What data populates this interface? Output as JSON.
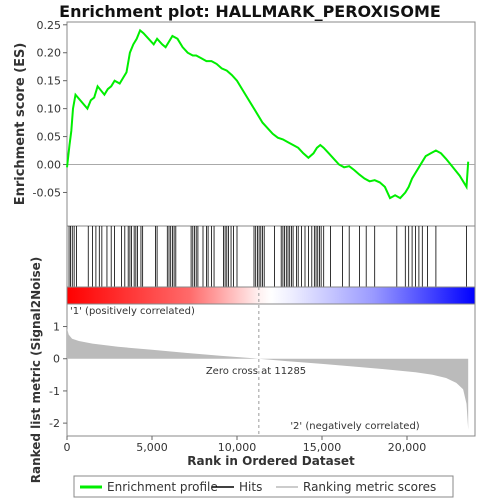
{
  "chart_data": {
    "type": "line",
    "title": "Enrichment plot: HALLMARK_PEROXISOME",
    "top_panel": {
      "ylabel": "Enrichment score (ES)",
      "ylim": [
        -0.11,
        0.255
      ],
      "yticks": [
        -0.05,
        0.0,
        0.05,
        0.1,
        0.15,
        0.2,
        0.25
      ],
      "ytick_labels": [
        "-0.05",
        "0.00",
        "0.05",
        "0.10",
        "0.15",
        "0.20",
        "0.25"
      ],
      "series": [
        {
          "name": "Enrichment profile",
          "color": "#00ee00",
          "x": [
            0,
            150,
            250,
            350,
            500,
            1200,
            1400,
            1600,
            1800,
            2200,
            2400,
            2600,
            2800,
            3100,
            3300,
            3500,
            3700,
            3900,
            4100,
            4300,
            4500,
            4800,
            5100,
            5300,
            5600,
            5800,
            6000,
            6200,
            6500,
            6800,
            7100,
            7400,
            7600,
            7900,
            8200,
            8500,
            8800,
            9100,
            9400,
            9700,
            10000,
            10300,
            10600,
            10900,
            11200,
            11500,
            11800,
            12100,
            12400,
            12700,
            13000,
            13300,
            13600,
            13900,
            14200,
            14500,
            14700,
            14900,
            15100,
            15400,
            15700,
            16000,
            16300,
            16600,
            16900,
            17200,
            17500,
            17800,
            18100,
            18400,
            18700,
            19000,
            19300,
            19600,
            19900,
            20100,
            20300,
            20500,
            20700,
            20900,
            21100,
            21400,
            21700,
            22000,
            22300,
            22700,
            23100,
            23500,
            23600
          ],
          "y": [
            -0.005,
            0.035,
            0.06,
            0.1,
            0.125,
            0.1,
            0.115,
            0.12,
            0.14,
            0.125,
            0.135,
            0.14,
            0.15,
            0.145,
            0.155,
            0.165,
            0.2,
            0.215,
            0.225,
            0.24,
            0.235,
            0.225,
            0.215,
            0.225,
            0.215,
            0.21,
            0.22,
            0.23,
            0.225,
            0.21,
            0.2,
            0.195,
            0.195,
            0.19,
            0.185,
            0.185,
            0.18,
            0.172,
            0.168,
            0.16,
            0.15,
            0.135,
            0.12,
            0.105,
            0.09,
            0.075,
            0.065,
            0.055,
            0.048,
            0.045,
            0.04,
            0.035,
            0.03,
            0.02,
            0.012,
            0.02,
            0.03,
            0.035,
            0.03,
            0.02,
            0.01,
            0.0,
            -0.005,
            -0.003,
            -0.01,
            -0.018,
            -0.025,
            -0.03,
            -0.028,
            -0.032,
            -0.04,
            -0.06,
            -0.055,
            -0.06,
            -0.05,
            -0.04,
            -0.025,
            -0.015,
            -0.005,
            0.005,
            0.015,
            0.02,
            0.025,
            0.02,
            0.01,
            -0.005,
            -0.02,
            -0.04,
            0.005
          ]
        }
      ]
    },
    "hits_panel": {
      "hit_positions": [
        120,
        200,
        310,
        420,
        560,
        1250,
        1500,
        1700,
        1900,
        2050,
        2350,
        2600,
        2800,
        3200,
        3400,
        3600,
        3700,
        3800,
        3950,
        4050,
        4150,
        4350,
        4450,
        5200,
        5300,
        5900,
        6000,
        6100,
        6200,
        6300,
        6400,
        7300,
        7400,
        7500,
        7600,
        7700,
        8000,
        8200,
        8300,
        8500,
        8650,
        9200,
        9300,
        9400,
        9500,
        9650,
        9800,
        10000,
        11000,
        11100,
        11200,
        11300,
        11400,
        11500,
        11600,
        12200,
        12600,
        12700,
        12800,
        12900,
        13000,
        13100,
        13200,
        13300,
        13500,
        13600,
        13800,
        14000,
        14200,
        14400,
        14550,
        14650,
        14750,
        14850,
        14950,
        15100,
        15500,
        16200,
        16600,
        17200,
        17600,
        18100,
        19400,
        19900,
        20100,
        20300,
        20500,
        20700,
        20900,
        21200,
        21700,
        23500
      ]
    },
    "bottom_panel": {
      "ylabel": "Ranked list metric (Signal2Noise)",
      "xlabel": "Rank in Ordered Dataset",
      "xlim": [
        0,
        24000
      ],
      "xticks": [
        0,
        5000,
        10000,
        15000,
        20000
      ],
      "xtick_labels": [
        "0",
        "5,000",
        "10,000",
        "15,000",
        "20,000"
      ],
      "ylim": [
        -2.4,
        1.7
      ],
      "yticks": [
        -2,
        -1,
        0,
        1
      ],
      "ytick_labels": [
        "-2",
        "-1",
        "0",
        "1"
      ],
      "metric_profile": {
        "x": [
          0,
          100,
          300,
          700,
          1500,
          3000,
          5000,
          7000,
          9000,
          11285,
          13000,
          15000,
          17000,
          19000,
          20500,
          21500,
          22300,
          22900,
          23300,
          23500,
          23600
        ],
        "y": [
          0.95,
          0.75,
          0.62,
          0.55,
          0.47,
          0.37,
          0.28,
          0.18,
          0.09,
          0.0,
          -0.08,
          -0.16,
          -0.25,
          -0.34,
          -0.42,
          -0.5,
          -0.6,
          -0.75,
          -0.95,
          -1.4,
          -2.2
        ]
      },
      "zero_cross_rank": 11285,
      "annotations": {
        "zero_cross": "Zero cross at 11285",
        "positive": "'1' (positively correlated)",
        "negative": "'2' (negatively correlated)"
      }
    },
    "colors": {
      "profile": "#00ee00",
      "hits": "#000000",
      "metric_fill": "#bbbbbb",
      "positive_label": "#ff0000",
      "negative_label": "#0000cc",
      "heat_positive": "#ff0000",
      "heat_negative": "#0000ff"
    },
    "legend": {
      "placement": "bottom",
      "items": [
        {
          "label": "Enrichment profile",
          "color": "#00ee00"
        },
        {
          "label": "Hits",
          "color": "#000000"
        },
        {
          "label": "Ranking metric scores",
          "color": "#bbbbbb"
        }
      ]
    }
  }
}
